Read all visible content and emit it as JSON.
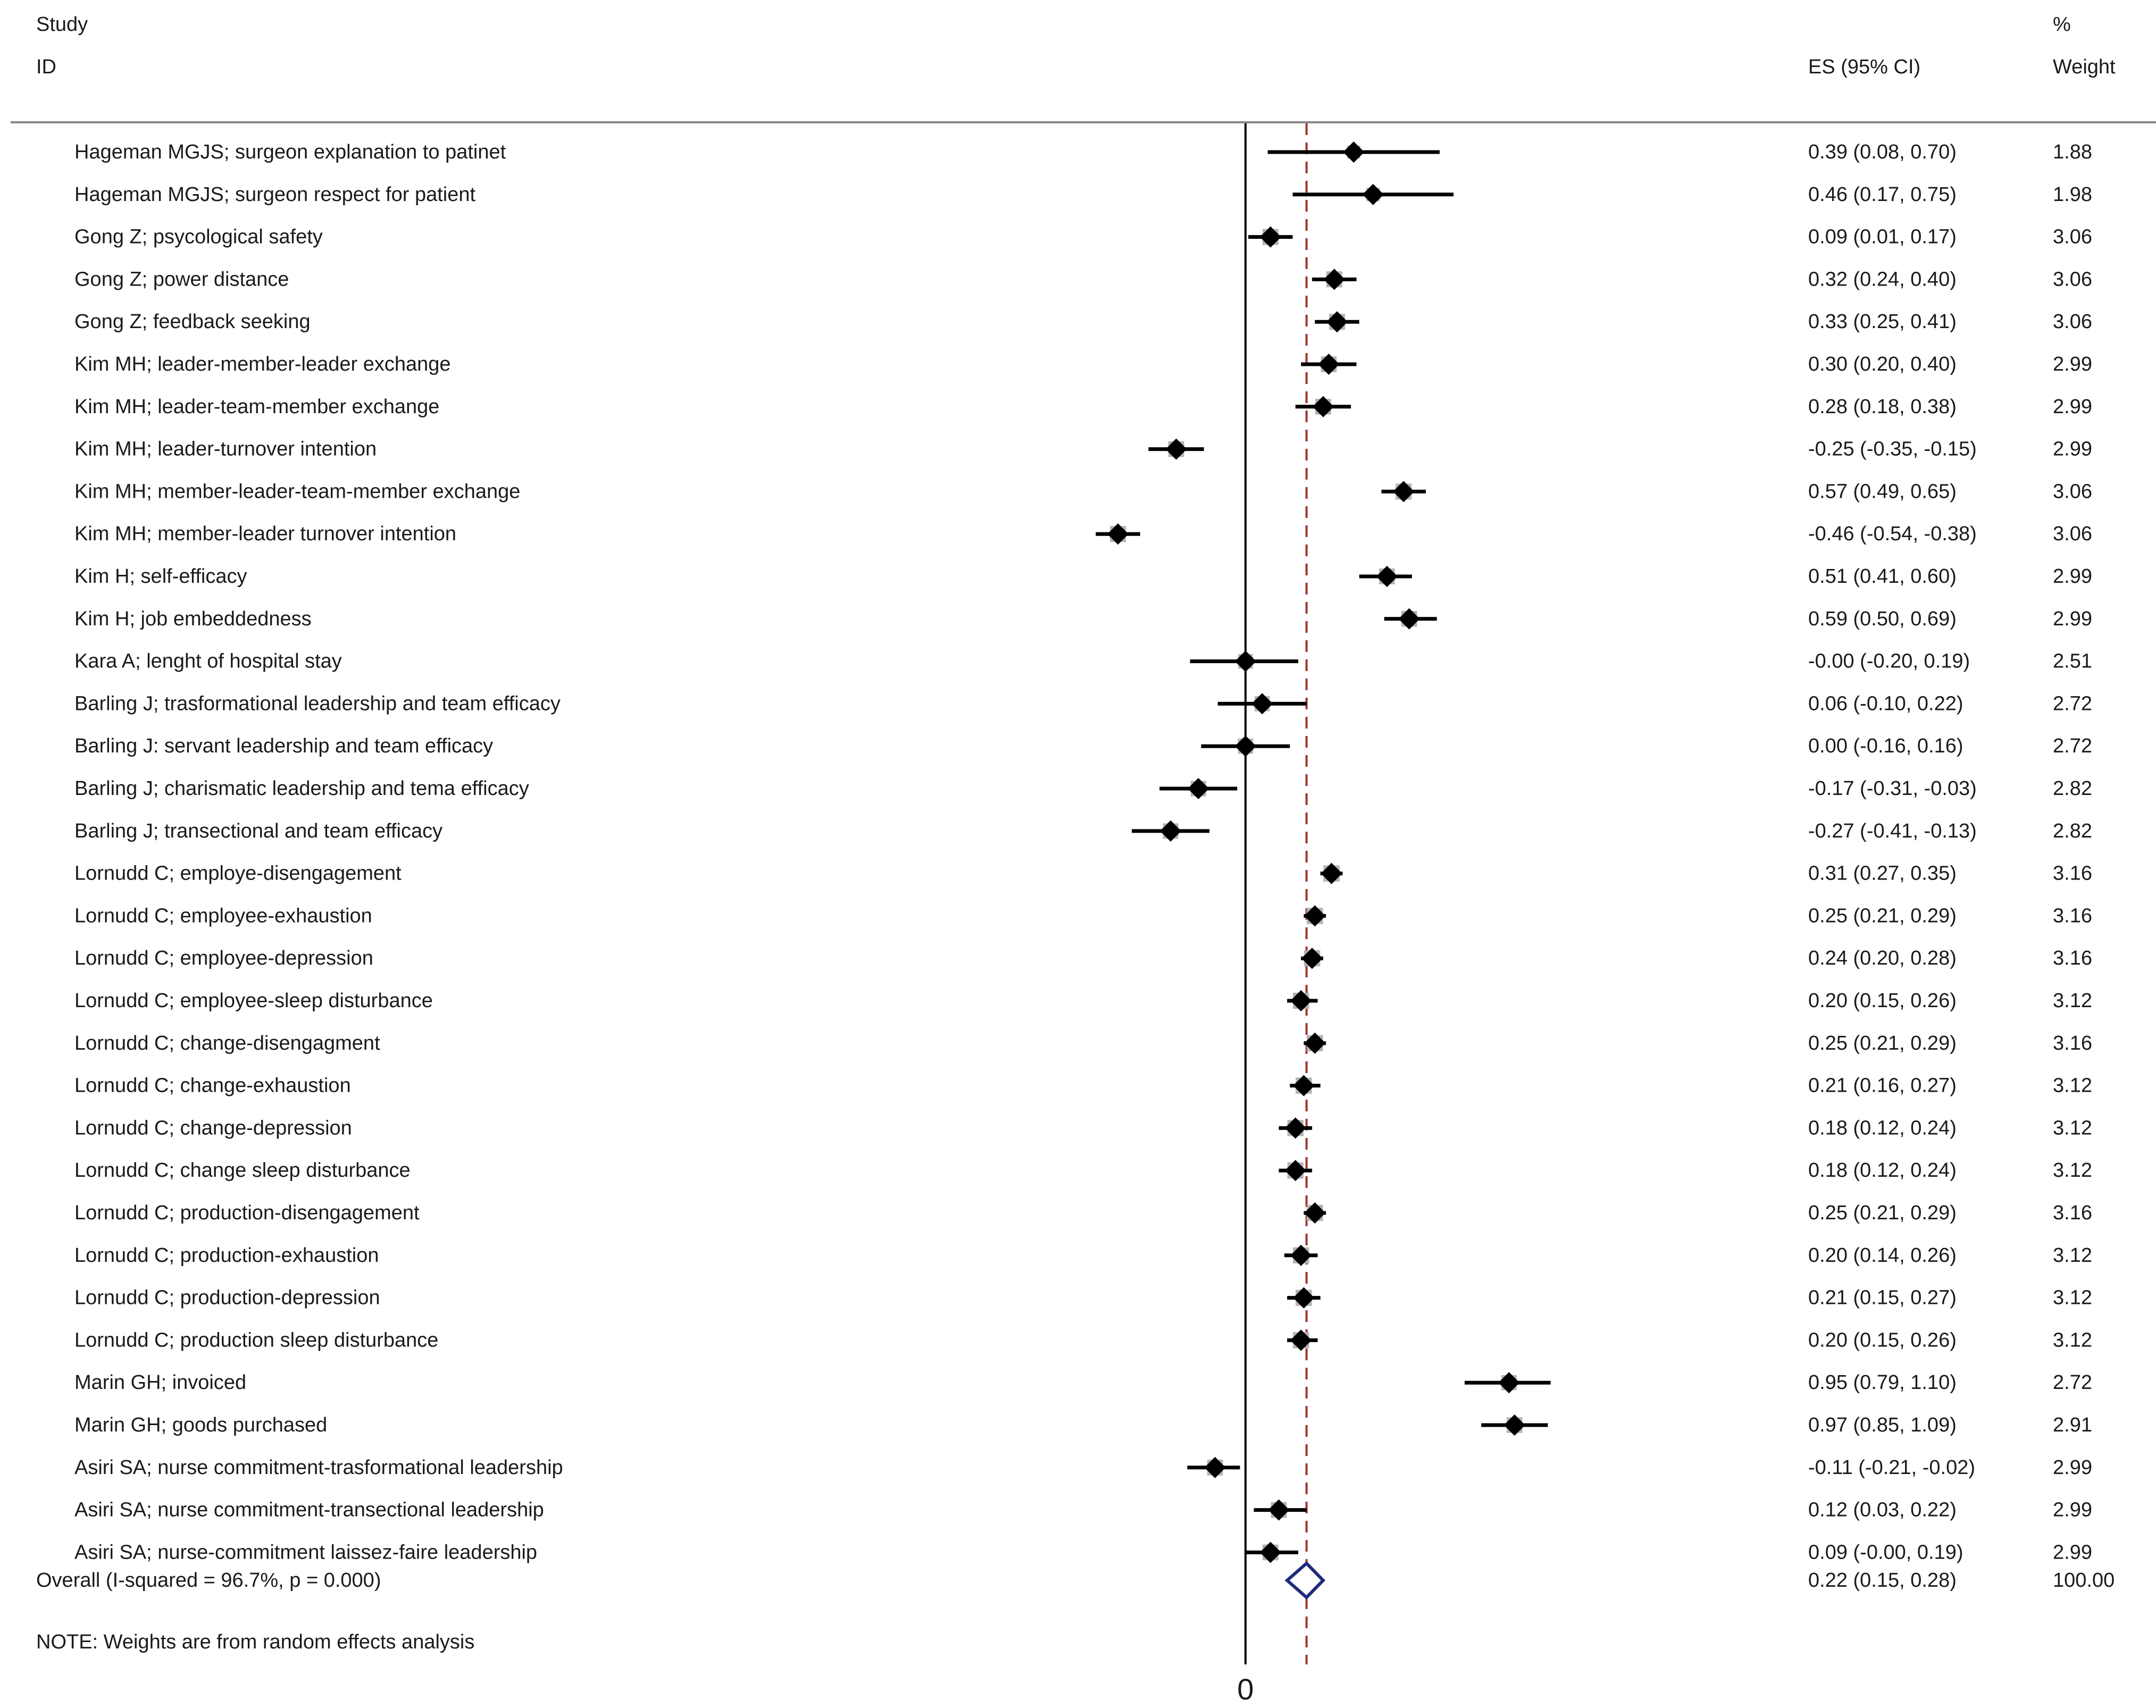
{
  "chart_data": {
    "type": "forest",
    "header": {
      "study": "Study",
      "id": "ID",
      "es_ci": "ES (95% CI)",
      "pct": "%",
      "weight": "Weight"
    },
    "x_axis": {
      "tick_label": "0",
      "xlim": [
        -0.75,
        1.2
      ],
      "null_line": 0
    },
    "overall_line": 0.22,
    "studies": [
      {
        "label": "Hageman MGJS; surgeon explanation to patinet",
        "es": 0.39,
        "lo": 0.08,
        "hi": 0.7,
        "es_text": "0.39 (0.08, 0.70)",
        "weight": "1.88"
      },
      {
        "label": "Hageman MGJS; surgeon respect for patient",
        "es": 0.46,
        "lo": 0.17,
        "hi": 0.75,
        "es_text": "0.46 (0.17, 0.75)",
        "weight": "1.98"
      },
      {
        "label": "Gong Z; psycological safety",
        "es": 0.09,
        "lo": 0.01,
        "hi": 0.17,
        "es_text": "0.09 (0.01, 0.17)",
        "weight": "3.06"
      },
      {
        "label": "Gong Z; power distance",
        "es": 0.32,
        "lo": 0.24,
        "hi": 0.4,
        "es_text": "0.32 (0.24, 0.40)",
        "weight": "3.06"
      },
      {
        "label": "Gong Z; feedback seeking",
        "es": 0.33,
        "lo": 0.25,
        "hi": 0.41,
        "es_text": "0.33 (0.25, 0.41)",
        "weight": "3.06"
      },
      {
        "label": "Kim MH; leader-member-leader exchange",
        "es": 0.3,
        "lo": 0.2,
        "hi": 0.4,
        "es_text": "0.30 (0.20, 0.40)",
        "weight": "2.99"
      },
      {
        "label": "Kim MH; leader-team-member exchange",
        "es": 0.28,
        "lo": 0.18,
        "hi": 0.38,
        "es_text": "0.28 (0.18, 0.38)",
        "weight": "2.99"
      },
      {
        "label": "Kim MH; leader-turnover intention",
        "es": -0.25,
        "lo": -0.35,
        "hi": -0.15,
        "es_text": "-0.25 (-0.35, -0.15)",
        "weight": "2.99"
      },
      {
        "label": "Kim MH; member-leader-team-member exchange",
        "es": 0.57,
        "lo": 0.49,
        "hi": 0.65,
        "es_text": "0.57 (0.49, 0.65)",
        "weight": "3.06"
      },
      {
        "label": "Kim MH; member-leader turnover intention",
        "es": -0.46,
        "lo": -0.54,
        "hi": -0.38,
        "es_text": "-0.46 (-0.54, -0.38)",
        "weight": "3.06"
      },
      {
        "label": "Kim H; self-efficacy",
        "es": 0.51,
        "lo": 0.41,
        "hi": 0.6,
        "es_text": "0.51 (0.41, 0.60)",
        "weight": "2.99"
      },
      {
        "label": "Kim H; job embeddedness",
        "es": 0.59,
        "lo": 0.5,
        "hi": 0.69,
        "es_text": "0.59 (0.50, 0.69)",
        "weight": "2.99"
      },
      {
        "label": "Kara A; lenght of hospital stay",
        "es": -0.0,
        "lo": -0.2,
        "hi": 0.19,
        "es_text": "-0.00 (-0.20, 0.19)",
        "weight": "2.51"
      },
      {
        "label": "Barling J; trasformational leadership and team efficacy",
        "es": 0.06,
        "lo": -0.1,
        "hi": 0.22,
        "es_text": "0.06 (-0.10, 0.22)",
        "weight": "2.72"
      },
      {
        "label": "Barling J: servant leadership and team efficacy",
        "es": 0.0,
        "lo": -0.16,
        "hi": 0.16,
        "es_text": "0.00 (-0.16, 0.16)",
        "weight": "2.72"
      },
      {
        "label": "Barling J; charismatic leadership and tema efficacy",
        "es": -0.17,
        "lo": -0.31,
        "hi": -0.03,
        "es_text": "-0.17 (-0.31, -0.03)",
        "weight": "2.82"
      },
      {
        "label": "Barling J; transectional and team efficacy",
        "es": -0.27,
        "lo": -0.41,
        "hi": -0.13,
        "es_text": "-0.27 (-0.41, -0.13)",
        "weight": "2.82"
      },
      {
        "label": "Lornudd C; employe-disengagement",
        "es": 0.31,
        "lo": 0.27,
        "hi": 0.35,
        "es_text": "0.31 (0.27, 0.35)",
        "weight": "3.16"
      },
      {
        "label": "Lornudd C; employee-exhaustion",
        "es": 0.25,
        "lo": 0.21,
        "hi": 0.29,
        "es_text": "0.25 (0.21, 0.29)",
        "weight": "3.16"
      },
      {
        "label": "Lornudd C; employee-depression",
        "es": 0.24,
        "lo": 0.2,
        "hi": 0.28,
        "es_text": "0.24 (0.20, 0.28)",
        "weight": "3.16"
      },
      {
        "label": "Lornudd C; employee-sleep disturbance",
        "es": 0.2,
        "lo": 0.15,
        "hi": 0.26,
        "es_text": "0.20 (0.15, 0.26)",
        "weight": "3.12"
      },
      {
        "label": "Lornudd C; change-disengagment",
        "es": 0.25,
        "lo": 0.21,
        "hi": 0.29,
        "es_text": "0.25 (0.21, 0.29)",
        "weight": "3.16"
      },
      {
        "label": "Lornudd C; change-exhaustion",
        "es": 0.21,
        "lo": 0.16,
        "hi": 0.27,
        "es_text": "0.21 (0.16, 0.27)",
        "weight": "3.12"
      },
      {
        "label": "Lornudd C; change-depression",
        "es": 0.18,
        "lo": 0.12,
        "hi": 0.24,
        "es_text": "0.18 (0.12, 0.24)",
        "weight": "3.12"
      },
      {
        "label": "Lornudd C; change sleep disturbance",
        "es": 0.18,
        "lo": 0.12,
        "hi": 0.24,
        "es_text": "0.18 (0.12, 0.24)",
        "weight": "3.12"
      },
      {
        "label": "Lornudd C; production-disengagement",
        "es": 0.25,
        "lo": 0.21,
        "hi": 0.29,
        "es_text": "0.25 (0.21, 0.29)",
        "weight": "3.16"
      },
      {
        "label": "Lornudd C; production-exhaustion",
        "es": 0.2,
        "lo": 0.14,
        "hi": 0.26,
        "es_text": "0.20 (0.14, 0.26)",
        "weight": "3.12"
      },
      {
        "label": "Lornudd C; production-depression",
        "es": 0.21,
        "lo": 0.15,
        "hi": 0.27,
        "es_text": "0.21 (0.15, 0.27)",
        "weight": "3.12"
      },
      {
        "label": "Lornudd C; production sleep disturbance",
        "es": 0.2,
        "lo": 0.15,
        "hi": 0.26,
        "es_text": "0.20 (0.15, 0.26)",
        "weight": "3.12"
      },
      {
        "label": "Marin GH; invoiced",
        "es": 0.95,
        "lo": 0.79,
        "hi": 1.1,
        "es_text": "0.95 (0.79, 1.10)",
        "weight": "2.72"
      },
      {
        "label": "Marin GH; goods purchased",
        "es": 0.97,
        "lo": 0.85,
        "hi": 1.09,
        "es_text": "0.97 (0.85, 1.09)",
        "weight": "2.91"
      },
      {
        "label": "Asiri SA; nurse commitment-trasformational leadership",
        "es": -0.11,
        "lo": -0.21,
        "hi": -0.02,
        "es_text": "-0.11 (-0.21, -0.02)",
        "weight": "2.99"
      },
      {
        "label": "Asiri SA; nurse commitment-transectional leadership",
        "es": 0.12,
        "lo": 0.03,
        "hi": 0.22,
        "es_text": "0.12 (0.03, 0.22)",
        "weight": "2.99"
      },
      {
        "label": "Asiri SA; nurse-commitment laissez-faire leadership",
        "es": 0.09,
        "lo": -0.0,
        "hi": 0.19,
        "es_text": "0.09 (-0.00, 0.19)",
        "weight": "2.99"
      }
    ],
    "overall": {
      "label": "Overall  (I-squared = 96.7%, p = 0.000)",
      "es": 0.22,
      "lo": 0.15,
      "hi": 0.28,
      "es_text": "0.22 (0.15, 0.28)",
      "weight": "100.00"
    },
    "note": "NOTE: Weights are from random effects analysis",
    "colors": {
      "marker": "#000000",
      "weight_box": "#b3b3b3",
      "overall_line": "#a0352f",
      "diamond": "#1f2a7a"
    }
  }
}
